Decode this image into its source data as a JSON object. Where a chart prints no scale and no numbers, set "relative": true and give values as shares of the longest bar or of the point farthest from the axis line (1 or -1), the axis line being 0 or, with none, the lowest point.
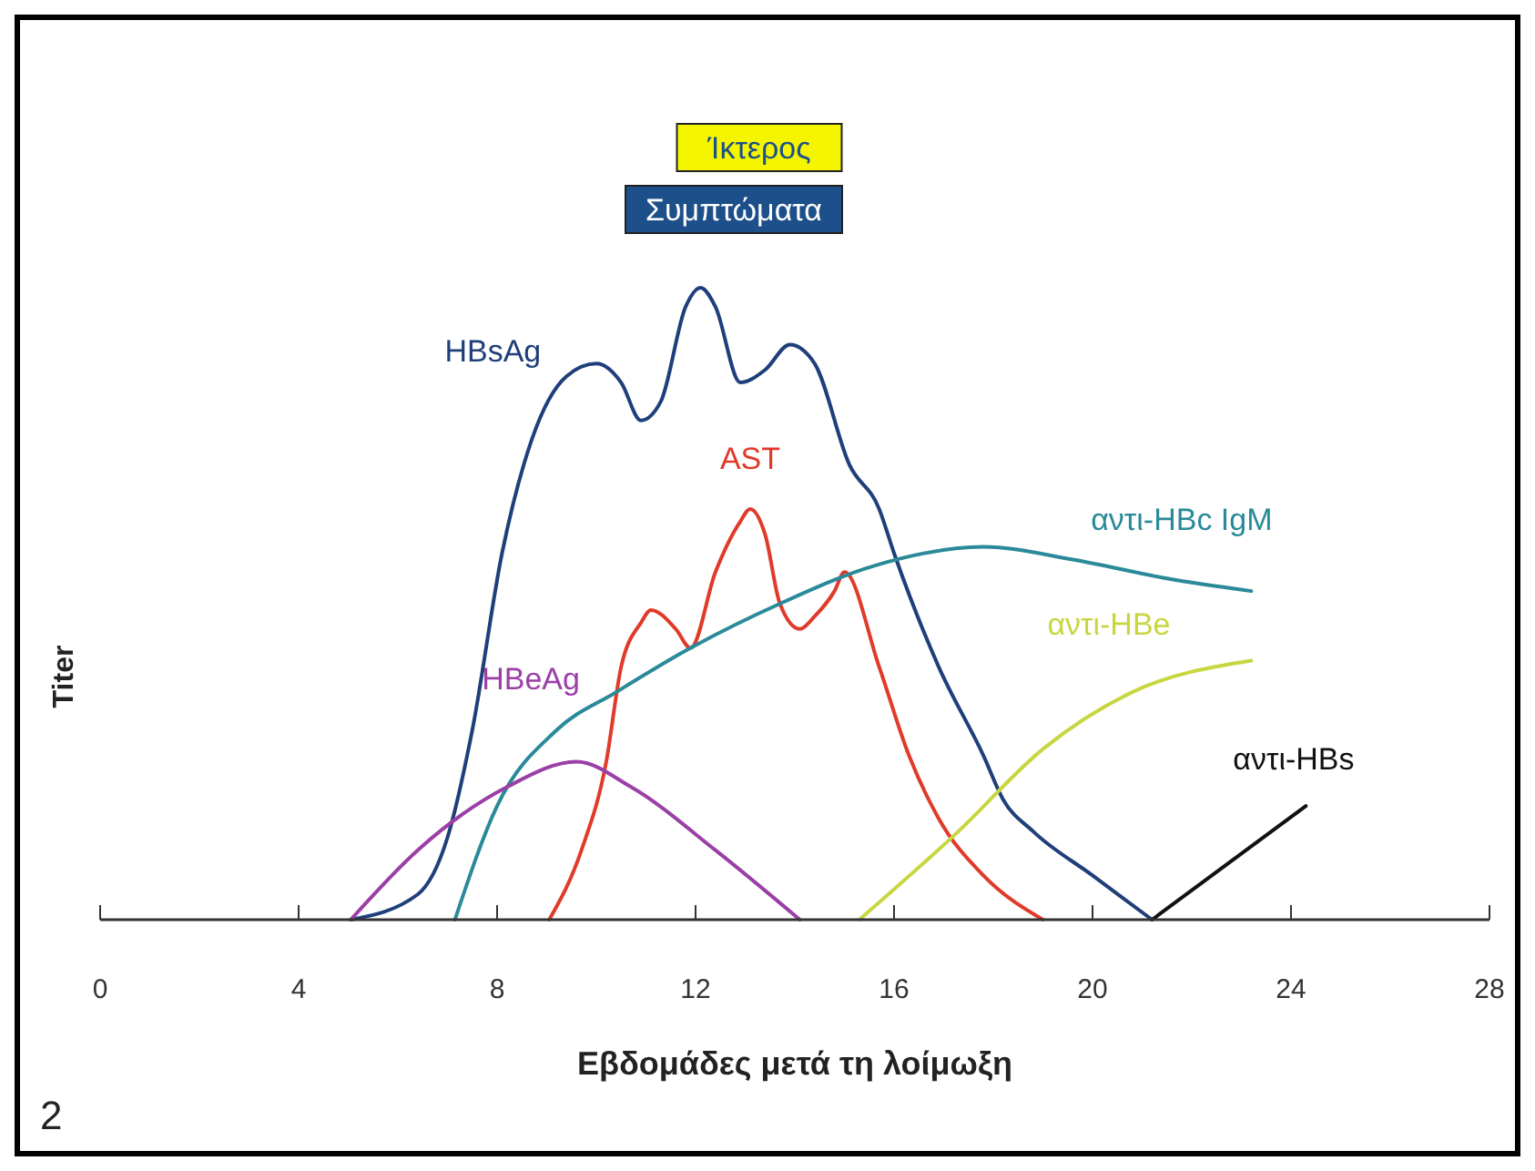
{
  "chart_data": {
    "type": "line",
    "relative": true,
    "xlabel": "Εβδομάδες μετά τη λοίμωξη",
    "ylabel": "Titer",
    "xlim": [
      0,
      28
    ],
    "xticks": [
      0,
      4,
      8,
      12,
      16,
      20,
      24,
      28
    ],
    "marker": "none",
    "line_style": "solid",
    "series": [
      {
        "name": "HBsAg",
        "color": "#1f3f7a",
        "x": [
          5.05,
          6.4,
          7.0,
          7.5,
          8.1,
          8.7,
          9.4,
          10.0,
          10.5,
          10.9,
          11.3,
          11.8,
          12.1,
          12.4,
          12.9,
          13.4,
          13.9,
          14.4,
          15.1,
          15.7,
          16.0,
          16.9,
          17.8,
          18.2,
          18.8,
          20.0,
          21.2
        ],
        "values": [
          0,
          0.04,
          0.13,
          0.3,
          0.58,
          0.76,
          0.86,
          0.88,
          0.85,
          0.79,
          0.82,
          0.97,
          1,
          0.97,
          0.85,
          0.87,
          0.91,
          0.88,
          0.72,
          0.65,
          0.58,
          0.4,
          0.26,
          0.19,
          0.14,
          0.07,
          0
        ]
      },
      {
        "name": "AST",
        "color": "#e03a2a",
        "x": [
          9.05,
          9.7,
          10.2,
          10.5,
          10.9,
          11.1,
          11.6,
          11.9,
          12.4,
          12.9,
          13.1,
          13.4,
          13.7,
          14.1,
          14.4,
          14.8,
          15.0,
          15.7,
          16.3,
          16.9,
          17.8,
          19.0
        ],
        "values": [
          0,
          0.11,
          0.25,
          0.4,
          0.47,
          0.49,
          0.46,
          0.43,
          0.55,
          0.63,
          0.65,
          0.61,
          0.5,
          0.46,
          0.48,
          0.52,
          0.55,
          0.4,
          0.26,
          0.16,
          0.07,
          0
        ]
      },
      {
        "name": "αντι-HBc IgM",
        "color": "#2a8a99",
        "x": [
          7.15,
          8.0,
          9.2,
          10.4,
          11.9,
          13.7,
          15.6,
          17.8,
          19.6,
          21.5,
          23.2
        ],
        "values": [
          0,
          0.18,
          0.3,
          0.36,
          0.43,
          0.5,
          0.56,
          0.59,
          0.57,
          0.54,
          0.52
        ]
      },
      {
        "name": "HBeAg",
        "color": "#9b3fa6",
        "x": [
          5.05,
          6.4,
          8.2,
          9.6,
          10.7,
          12.4,
          14.1
        ],
        "values": [
          0,
          0.11,
          0.21,
          0.25,
          0.21,
          0.11,
          0
        ]
      },
      {
        "name": "αντι-HBe",
        "color": "#c8d640",
        "x": [
          15.3,
          17.3,
          19.0,
          20.8,
          23.2
        ],
        "values": [
          0,
          0.14,
          0.27,
          0.36,
          0.41
        ]
      },
      {
        "name": "αντι-HBs",
        "color": "#111111",
        "x": [
          21.2,
          24.3
        ],
        "values": [
          0,
          0.18
        ]
      }
    ],
    "annotations": [
      "Ίκτερος",
      "Συμπτώματα",
      "2"
    ]
  }
}
